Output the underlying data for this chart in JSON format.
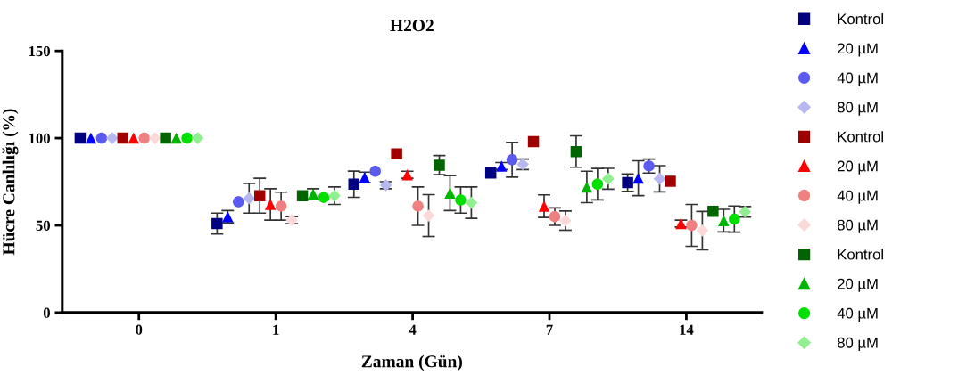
{
  "chart_data": {
    "type": "scatter",
    "title": "H2O2",
    "xlabel": "Zaman (Gün)",
    "ylabel": "Hücre Canlılığı (%)",
    "categories": [
      "0",
      "1",
      "4",
      "7",
      "14"
    ],
    "ylim": [
      0,
      150
    ],
    "yticks": [
      0,
      50,
      100,
      150
    ],
    "grid": false,
    "legend": "right",
    "series": [
      {
        "name": "Kontrol",
        "color": "#000080",
        "marker": "square",
        "values": [
          100,
          51,
          73.6,
          80,
          74.5
        ],
        "errors": [
          null,
          6,
          7.5,
          null,
          5
        ]
      },
      {
        "name": "20 µM",
        "color": "#0000ff",
        "marker": "triangle",
        "values": [
          100,
          55,
          77.5,
          84,
          77
        ],
        "errors": [
          null,
          3.5,
          3,
          2,
          10
        ]
      },
      {
        "name": "40 µM",
        "color": "#5b5bf0",
        "marker": "circle",
        "values": [
          100,
          63.5,
          81,
          87.6,
          84
        ],
        "errors": [
          null,
          null,
          null,
          10,
          4
        ]
      },
      {
        "name": "80 µM",
        "color": "#b8b8f0",
        "marker": "diamond",
        "values": [
          100,
          65.5,
          73,
          85,
          76.7
        ],
        "errors": [
          null,
          8.5,
          2,
          3,
          7.5
        ]
      },
      {
        "name": "Kontrol",
        "color": "#a00000",
        "marker": "square",
        "values": [
          100,
          67,
          91,
          98,
          75.3
        ],
        "errors": [
          null,
          10,
          null,
          null,
          null
        ]
      },
      {
        "name": "20 µM",
        "color": "#ff0000",
        "marker": "triangle",
        "values": [
          100,
          62,
          79,
          61,
          51
        ],
        "errors": [
          null,
          9,
          2,
          6.5,
          2
        ]
      },
      {
        "name": "40 µM",
        "color": "#f08080",
        "marker": "circle",
        "values": [
          100,
          61,
          61,
          55,
          50
        ],
        "errors": [
          null,
          8,
          11,
          5,
          12
        ]
      },
      {
        "name": "80 µM",
        "color": "#fcd9d9",
        "marker": "diamond",
        "values": [
          100,
          53,
          55.6,
          52.7,
          47
        ],
        "errors": [
          null,
          2,
          12,
          5.5,
          11
        ]
      },
      {
        "name": "Kontrol",
        "color": "#006400",
        "marker": "square",
        "values": [
          100,
          67,
          84.5,
          92.3,
          58
        ],
        "errors": [
          null,
          null,
          5.5,
          9,
          null
        ]
      },
      {
        "name": "20 µM",
        "color": "#00b400",
        "marker": "triangle",
        "values": [
          100,
          68,
          68.5,
          72,
          52.7
        ],
        "errors": [
          null,
          3,
          10,
          9,
          6.5
        ]
      },
      {
        "name": "40 µM",
        "color": "#00e000",
        "marker": "circle",
        "values": [
          100,
          66,
          64.5,
          73.6,
          53.6
        ],
        "errors": [
          null,
          null,
          7.5,
          9,
          7.5
        ]
      },
      {
        "name": "80 µM",
        "color": "#90f090",
        "marker": "diamond",
        "values": [
          100,
          67,
          63,
          76.7,
          57.8
        ],
        "errors": [
          null,
          5,
          9,
          6,
          3
        ]
      }
    ]
  }
}
